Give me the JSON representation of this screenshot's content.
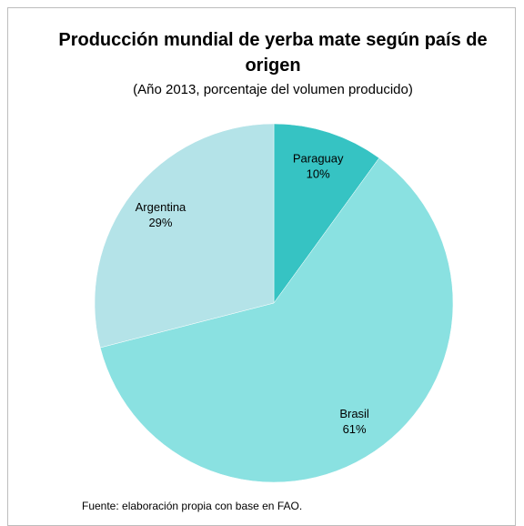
{
  "chart_data": {
    "type": "pie",
    "title": "Producción mundial de yerba mate según país de origen",
    "subtitle": "(Año 2013, porcentaje del volumen producido)",
    "categories": [
      "Paraguay",
      "Brasil",
      "Argentina"
    ],
    "values": [
      10,
      61,
      29
    ],
    "value_labels": [
      "10%",
      "61%",
      "29%"
    ],
    "colors": [
      "#36c3c3",
      "#8ae1e1",
      "#b4e3e8"
    ],
    "source": "Fuente: elaboración propia con base en FAO."
  }
}
